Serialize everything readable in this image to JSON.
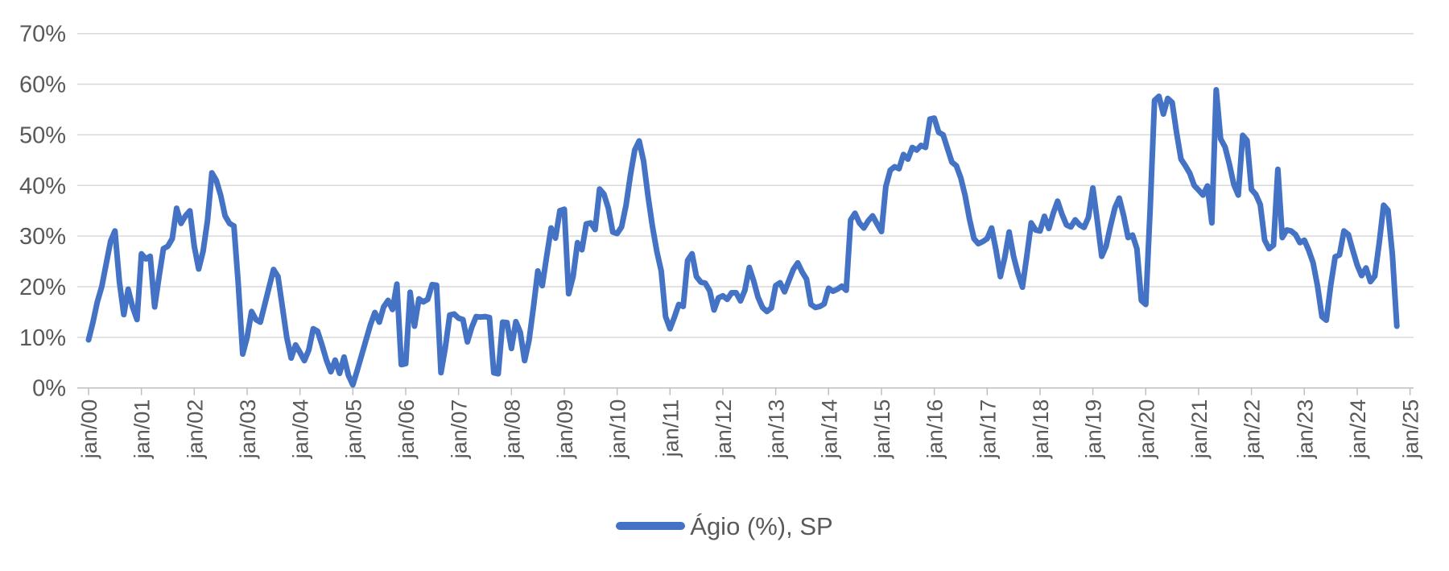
{
  "chart_data": {
    "type": "line",
    "title": "",
    "xlabel": "",
    "ylabel": "",
    "ylim": [
      0,
      70
    ],
    "grid": "horizontal",
    "legend_position": "bottom-center",
    "y_ticks": [
      "0%",
      "10%",
      "20%",
      "30%",
      "40%",
      "50%",
      "60%",
      "70%"
    ],
    "x_tick_labels": [
      "jan/00",
      "jan/01",
      "jan/02",
      "jan/03",
      "jan/04",
      "jan/05",
      "jan/06",
      "jan/07",
      "jan/08",
      "jan/09",
      "jan/10",
      "jan/11",
      "jan/12",
      "jan/13",
      "jan/14",
      "jan/15",
      "jan/16",
      "jan/17",
      "jan/18",
      "jan/19",
      "jan/20",
      "jan/21",
      "jan/22",
      "jan/23",
      "jan/24",
      "jan/25"
    ],
    "frequency": "monthly",
    "x_start": "jan/00",
    "x_end_of_data": "out/24",
    "series": [
      {
        "name": "Ágio (%), SP",
        "color": "#4472C4",
        "values": [
          9.5,
          13,
          17,
          20,
          24.5,
          29,
          31,
          21,
          14.5,
          19.5,
          16,
          13.5,
          26.5,
          25.5,
          26,
          16,
          22,
          27.5,
          28,
          29.5,
          35.5,
          32.5,
          34,
          35,
          28,
          23.5,
          27,
          33,
          42.5,
          41,
          38,
          34,
          32.5,
          32,
          20.5,
          6.7,
          10,
          15.1,
          13.5,
          13,
          16.5,
          20,
          23.4,
          22,
          16,
          10,
          5.9,
          8.5,
          7,
          5.4,
          7.5,
          11.7,
          11.2,
          8.5,
          5.5,
          3.2,
          5.5,
          2.9,
          6.1,
          2.5,
          0.6,
          3.5,
          6.5,
          9.5,
          12.5,
          14.9,
          13,
          16,
          17.3,
          15.5,
          20.5,
          4.6,
          4.8,
          18.9,
          12.2,
          17.6,
          17,
          17.5,
          20.4,
          20.3,
          3,
          8,
          14.4,
          14.6,
          13.8,
          13.5,
          9.1,
          12,
          14.1,
          14,
          14.1,
          13.9,
          3,
          2.8,
          13,
          12.9,
          7.8,
          13.1,
          11,
          5.4,
          9.4,
          16,
          23.1,
          20.2,
          26,
          31.6,
          29.6,
          35,
          35.3,
          18.6,
          22,
          28.7,
          27.3,
          32.4,
          32.6,
          31.3,
          39.3,
          38.3,
          35.5,
          30.8,
          30.5,
          31.8,
          36,
          42,
          47,
          48.8,
          44.8,
          38,
          32,
          27,
          23.1,
          14.1,
          11.7,
          14,
          16.5,
          16.1,
          25.2,
          26.5,
          22,
          20.9,
          20.7,
          19.2,
          15.4,
          17.8,
          18.2,
          17.5,
          18.8,
          18.8,
          17.2,
          19.3,
          23.8,
          21.1,
          17.9,
          15.9,
          15.1,
          15.8,
          20.2,
          20.8,
          19,
          21.2,
          23.4,
          24.7,
          22.9,
          21.5,
          16.5,
          15.9,
          16.1,
          16.6,
          19.7,
          19.1,
          19.5,
          20.1,
          19.3,
          33.2,
          34.5,
          32.6,
          31.6,
          33,
          34,
          32.4,
          30.9,
          39.8,
          43,
          43.7,
          43.3,
          46.1,
          45.2,
          47.5,
          47,
          47.9,
          47.5,
          53.1,
          53.3,
          50.5,
          50,
          47.3,
          44.6,
          43.9,
          41.5,
          38,
          33.3,
          29.5,
          28.5,
          28.9,
          29.5,
          31.6,
          27.3,
          22,
          25.8,
          30.8,
          26,
          22.6,
          19.9,
          26,
          32.6,
          31.2,
          31,
          33.9,
          31.5,
          34.5,
          36.9,
          34.3,
          32.2,
          31.8,
          33.2,
          32.2,
          31.7,
          33.7,
          39.5,
          33,
          26,
          28,
          32,
          35.6,
          37.5,
          34,
          29.7,
          30.2,
          27.5,
          17.3,
          16.5,
          35.5,
          56.8,
          57.6,
          54.1,
          57.2,
          56.4,
          50.4,
          45.2,
          43.9,
          42.4,
          40,
          39.1,
          38.1,
          39.9,
          32.6,
          58.9,
          49.2,
          47.6,
          44.2,
          40.2,
          38.1,
          49.9,
          48.9,
          39.2,
          38.2,
          36.2,
          29.2,
          27.5,
          28.2,
          43.2,
          29.7,
          31.2,
          31,
          30.3,
          28.7,
          29.2,
          27.2,
          24.7,
          20.1,
          14.1,
          13.4,
          20.3,
          25.9,
          26.3,
          31,
          30.3,
          27.2,
          24.3,
          22.2,
          23.7,
          21,
          22.1,
          28.6,
          36.1,
          35.1,
          26.3,
          12.2
        ]
      }
    ]
  },
  "legend": {
    "label": "Ágio (%), SP"
  },
  "colors": {
    "series": "#4472C4",
    "gridline": "#d9d9d9",
    "axis": "#bfbfbf",
    "label_text": "#595959",
    "background": "#ffffff"
  }
}
